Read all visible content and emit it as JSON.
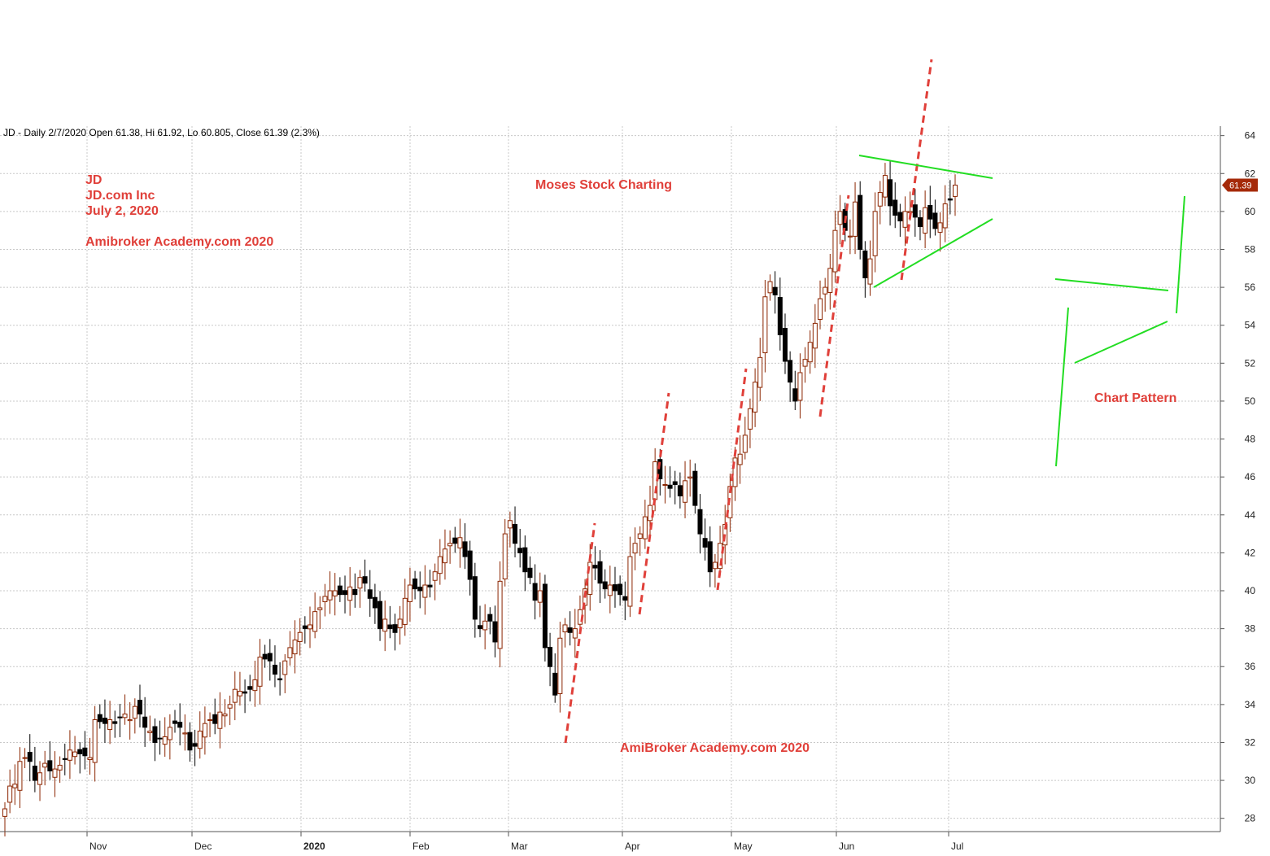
{
  "header": "JD - Daily 2/7/2020 Open 61.38, Hi 61.92, Lo 60.805, Close 61.39 (2.3%)",
  "notes": {
    "ticker": "JD",
    "company": "JD.com Inc",
    "date": "July 2, 2020",
    "site_top": "Amibroker Academy.com  2020",
    "brand": "Moses Stock Charting",
    "site_bottom": "AmiBroker Academy.com  2020",
    "pattern": "Chart Pattern"
  },
  "colors": {
    "up_candle": "#8b2500",
    "down_candle": "#000000",
    "annotation_red": "#e0403a",
    "trend_green": "#22dd22",
    "grid": "#c8c8c8",
    "badge": "#a52a0a"
  },
  "chart_data": {
    "type": "candlestick",
    "ylim": [
      27.3,
      64.5
    ],
    "yticks": [
      28,
      30,
      32,
      34,
      36,
      38,
      40,
      42,
      44,
      46,
      48,
      50,
      52,
      54,
      56,
      58,
      60,
      62,
      64
    ],
    "xtick_labels": [
      "Nov",
      "Dec",
      "2020",
      "Feb",
      "Mar",
      "Apr",
      "May",
      "Jun",
      "Jul"
    ],
    "last_close_label": "61.39",
    "grid": true,
    "closes": [
      28.5,
      29.7,
      29.8,
      31.0,
      31.2,
      31.0,
      30.0,
      30.4,
      30.9,
      30.5,
      30.6,
      30.8,
      31.1,
      31.6,
      31.5,
      31.4,
      31.3,
      31.2,
      33.2,
      33.1,
      33.0,
      33.2,
      33.0,
      33.3,
      33.5,
      33.2,
      33.9,
      33.5,
      32.8,
      32.6,
      32.0,
      32.2,
      32.3,
      32.8,
      33.0,
      32.8,
      32.5,
      31.6,
      31.8,
      32.6,
      33.0,
      33.2,
      33.0,
      33.6,
      33.5,
      34.0,
      34.8,
      34.7,
      34.6,
      34.8,
      35.3,
      36.5,
      36.4,
      36.3,
      35.6,
      35.3,
      36.3,
      37.0,
      37.4,
      37.8,
      38.0,
      38.2,
      38.9,
      39.1,
      39.7,
      40.0,
      40.0,
      39.8,
      39.8,
      40.2,
      39.8,
      40.7,
      40.4,
      39.6,
      39.1,
      38.0,
      38.5,
      38.0,
      37.8,
      38.5,
      39.6,
      40.3,
      40.1,
      40.0,
      40.3,
      40.2,
      41.0,
      41.8,
      42.2,
      42.5,
      42.5,
      42.8,
      41.8,
      40.6,
      38.5,
      38.0,
      38.4,
      38.4,
      37.3,
      40.5,
      43.0,
      43.7,
      42.5,
      42.0,
      41.0,
      40.7,
      39.5,
      40.0,
      37.0,
      36.0,
      34.5,
      37.5,
      38.2,
      37.8,
      38.0,
      39.0,
      40.1,
      41.5,
      41.2,
      40.4,
      40.1,
      40.3,
      40.0,
      39.8,
      39.5,
      41.8,
      42.5,
      43.0,
      43.9,
      44.5,
      46.8,
      45.9,
      45.6,
      45.4,
      45.6,
      45.0,
      45.8,
      46.0,
      44.5,
      43.0,
      42.3,
      41.0,
      41.5,
      42.5,
      43.5,
      45.5,
      47.0,
      47.2,
      48.2,
      49.6,
      51.0,
      52.3,
      55.5,
      56.3,
      55.6,
      53.5,
      52.1,
      51.0,
      50.0,
      51.5,
      52.2,
      53.1,
      54.1,
      55.4,
      56.0,
      57.0,
      59.0,
      60.0,
      59.0,
      58.7,
      60.5,
      58.0,
      56.5,
      57.5,
      60.0,
      61.0,
      61.9,
      60.3,
      59.8,
      59.5,
      60.0,
      60.0,
      59.7,
      59.2,
      60.2,
      59.6,
      59.1,
      59.4,
      60.4,
      60.6,
      61.39
    ]
  }
}
